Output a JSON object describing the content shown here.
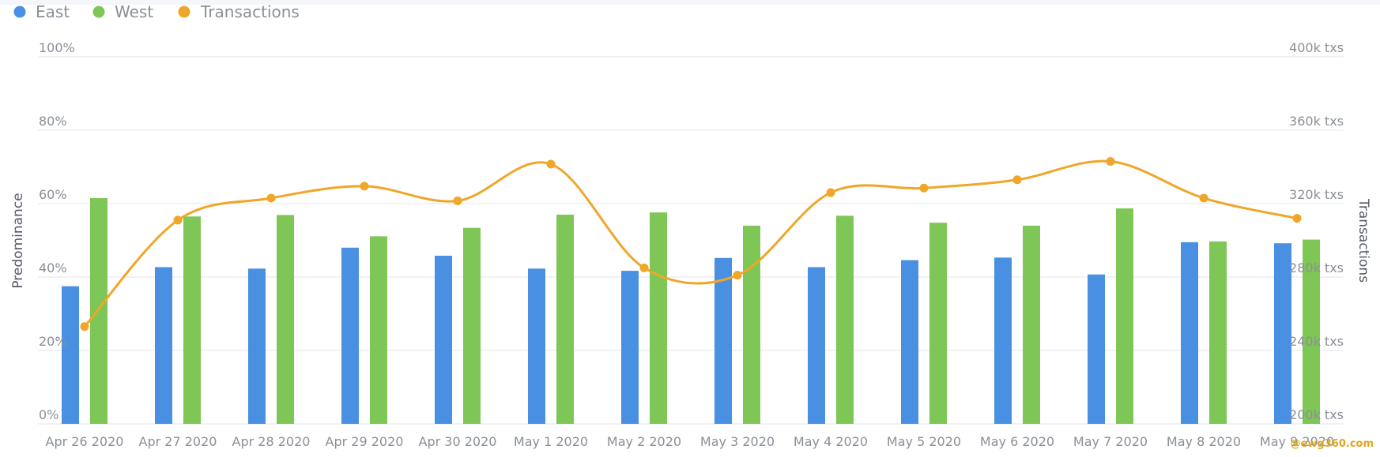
{
  "colors": {
    "east": "#4a90e2",
    "west": "#7ec655",
    "transactions": "#f0a628",
    "grid": "#e4e6ea"
  },
  "watermark": "@ewg360.com",
  "chart_data": {
    "type": "bar",
    "categories": [
      "Apr 26 2020",
      "Apr 27 2020",
      "Apr 28 2020",
      "Apr 29 2020",
      "Apr 30 2020",
      "May 1 2020",
      "May 2 2020",
      "May 3 2020",
      "May 4 2020",
      "May 5 2020",
      "May 6 2020",
      "May 7 2020",
      "May 8 2020",
      "May 9 2020"
    ],
    "series": [
      {
        "name": "East",
        "type": "bar",
        "axis": "left",
        "values": [
          37.5,
          42.7,
          42.3,
          48,
          45.8,
          42.3,
          41.7,
          45.2,
          42.7,
          44.6,
          45.3,
          40.7,
          49.5,
          49.2
        ]
      },
      {
        "name": "West",
        "type": "bar",
        "axis": "left",
        "values": [
          61.5,
          56.5,
          56.9,
          51.1,
          53.4,
          57,
          57.6,
          54,
          56.7,
          54.8,
          54,
          58.7,
          49.7,
          50.2
        ]
      },
      {
        "name": "Transactions",
        "type": "line",
        "axis": "right",
        "smooth": true,
        "values": [
          253000,
          311000,
          323000,
          329500,
          321500,
          341500,
          285000,
          281000,
          326000,
          328500,
          333000,
          343000,
          323000,
          312000
        ]
      }
    ],
    "y_left": {
      "label": "Predominance",
      "min": 0,
      "max": 100,
      "ticks": [
        "0%",
        "20%",
        "40%",
        "60%",
        "80%",
        "100%"
      ]
    },
    "y_right": {
      "label": "Transactions",
      "min": 200000,
      "max": 400000,
      "ticks": [
        "200k txs",
        "240k txs",
        "280k txs",
        "320k txs",
        "360k txs",
        "400k txs"
      ]
    },
    "grid": true,
    "legend": "top-left"
  }
}
